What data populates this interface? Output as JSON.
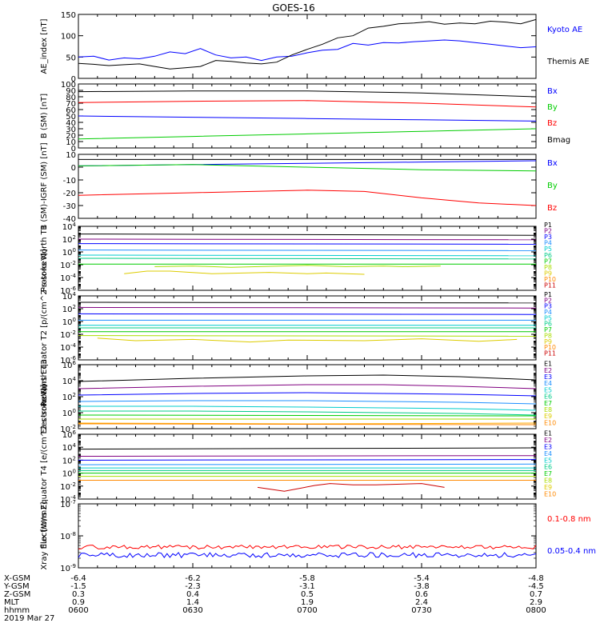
{
  "title": "GOES-16",
  "chart_data": [
    {
      "type": "line",
      "ylabel": "AE_index [nT]",
      "ylim": [
        0,
        150
      ],
      "yticks": [
        0,
        50,
        100,
        150
      ],
      "series": [
        {
          "name": "Kyoto AE",
          "color": "#0000ff",
          "x": [
            0,
            4,
            8,
            12,
            16,
            20,
            24,
            28,
            32,
            36,
            40,
            44,
            48,
            52,
            56,
            60,
            64,
            68,
            72,
            76,
            80,
            84,
            88,
            92,
            96,
            100,
            104,
            108,
            112,
            116,
            120
          ],
          "y": [
            50,
            52,
            43,
            48,
            46,
            52,
            62,
            58,
            70,
            55,
            48,
            50,
            42,
            50,
            52,
            60,
            66,
            68,
            82,
            78,
            84,
            83,
            86,
            88,
            90,
            88,
            84,
            80,
            76,
            72,
            74
          ]
        },
        {
          "name": "Themis AE",
          "color": "#000000",
          "x": [
            0,
            4,
            8,
            12,
            16,
            20,
            24,
            28,
            32,
            36,
            40,
            44,
            48,
            52,
            56,
            60,
            64,
            68,
            72,
            76,
            80,
            84,
            88,
            92,
            96,
            100,
            104,
            108,
            112,
            116,
            120
          ],
          "y": [
            35,
            33,
            30,
            32,
            34,
            28,
            22,
            25,
            28,
            42,
            40,
            36,
            34,
            38,
            55,
            68,
            80,
            95,
            100,
            118,
            122,
            128,
            130,
            133,
            127,
            130,
            128,
            134,
            132,
            128,
            138
          ]
        }
      ]
    },
    {
      "type": "line",
      "ylabel": "B (SM) [nT]",
      "ylim": [
        0,
        100
      ],
      "yticks": [
        0,
        10,
        20,
        30,
        40,
        50,
        60,
        70,
        80,
        90,
        100
      ],
      "series": [
        {
          "name": "Bx",
          "color": "#0000ff",
          "x": [
            0,
            30,
            60,
            90,
            120
          ],
          "y": [
            50,
            48,
            46,
            44,
            42
          ]
        },
        {
          "name": "By",
          "color": "#00cc00",
          "x": [
            0,
            30,
            60,
            90,
            120
          ],
          "y": [
            14,
            18,
            22,
            26,
            30
          ]
        },
        {
          "name": "Bz",
          "color": "#ff0000",
          "x": [
            0,
            30,
            60,
            90,
            120
          ],
          "y": [
            71,
            73,
            74,
            70,
            64
          ]
        },
        {
          "name": "Bmag",
          "color": "#000000",
          "x": [
            0,
            30,
            60,
            90,
            120
          ],
          "y": [
            88,
            89,
            89,
            86,
            80
          ]
        }
      ]
    },
    {
      "type": "line",
      "ylabel": "B (SM)-IGRF (SM) [nT]",
      "ylim": [
        -40,
        10
      ],
      "yticks": [
        -40,
        -30,
        -20,
        -10,
        0,
        10
      ],
      "series": [
        {
          "name": "Bx",
          "color": "#0000ff",
          "x": [
            0,
            30,
            60,
            90,
            120
          ],
          "y": [
            1,
            2,
            3,
            4,
            5
          ]
        },
        {
          "name": "By",
          "color": "#00cc00",
          "x": [
            0,
            30,
            60,
            90,
            120
          ],
          "y": [
            1,
            2,
            0,
            -2,
            -3
          ]
        },
        {
          "name": "Bz",
          "color": "#ff0000",
          "x": [
            0,
            30,
            60,
            75,
            90,
            105,
            120
          ],
          "y": [
            -22,
            -20,
            -18,
            -19,
            -24,
            -28,
            -30
          ]
        },
        {
          "name": "Bmag",
          "color": "#000000",
          "x": [
            0,
            30,
            60,
            90,
            120
          ],
          "y": [
            6,
            6,
            6,
            6,
            6
          ]
        }
      ]
    },
    {
      "type": "line",
      "ylabel": "Protons North T1",
      "log": true,
      "ylim": [
        -6,
        4
      ],
      "yticks": [
        "10^-6",
        "10^-4",
        "10^-2",
        "10^0",
        "10^2",
        "10^4"
      ],
      "series": [
        {
          "name": "P1",
          "color": "#000000",
          "x": [
            0,
            120
          ],
          "y": [
            2.8,
            2.6
          ]
        },
        {
          "name": "P2",
          "color": "#800080",
          "x": [
            0,
            120
          ],
          "y": [
            2.0,
            1.9
          ]
        },
        {
          "name": "P3",
          "color": "#0000ff",
          "x": [
            0,
            120
          ],
          "y": [
            1.3,
            1.2
          ]
        },
        {
          "name": "P4",
          "color": "#1e90ff",
          "x": [
            0,
            120
          ],
          "y": [
            0.3,
            0.2
          ]
        },
        {
          "name": "P5",
          "color": "#00cccc",
          "x": [
            0,
            120
          ],
          "y": [
            -0.5,
            -0.6
          ]
        },
        {
          "name": "P6",
          "color": "#00cc88",
          "x": [
            0,
            120
          ],
          "y": [
            -1.0,
            -1.1
          ]
        },
        {
          "name": "P7",
          "color": "#00cc00",
          "x": [
            0,
            120
          ],
          "y": [
            -1.9,
            -1.9
          ]
        },
        {
          "name": "P8",
          "color": "#aadd00",
          "x": [
            20,
            30,
            40,
            60,
            70,
            80,
            85,
            95
          ],
          "y": [
            -2.3,
            -2.2,
            -2.4,
            -2.1,
            -2.3,
            -2.2,
            -2.3,
            -2.2
          ]
        },
        {
          "name": "P9",
          "color": "#ddcc00",
          "x": [
            12,
            18,
            24,
            35,
            50,
            60,
            65,
            75
          ],
          "y": [
            -3.4,
            -3.0,
            -3.0,
            -3.4,
            -3.2,
            -3.4,
            -3.3,
            -3.5
          ]
        }
      ]
    },
    {
      "type": "line",
      "ylabel": "Protons Equator T2 [p/(cm^2-s-sr-keV)]",
      "log": true,
      "ylim": [
        -6,
        4
      ],
      "yticks": [
        "10^-6",
        "10^-4",
        "10^-2",
        "10^0",
        "10^2",
        "10^4"
      ],
      "series": [
        {
          "name": "P1",
          "color": "#000000",
          "x": [
            0,
            120
          ],
          "y": [
            3.0,
            2.9
          ]
        },
        {
          "name": "P2",
          "color": "#800080",
          "x": [
            0,
            120
          ],
          "y": [
            2.2,
            2.1
          ]
        },
        {
          "name": "P3",
          "color": "#0000ff",
          "x": [
            0,
            120
          ],
          "y": [
            1.2,
            1.1
          ]
        },
        {
          "name": "P4",
          "color": "#1e90ff",
          "x": [
            0,
            120
          ],
          "y": [
            0.2,
            0.2
          ]
        },
        {
          "name": "P5",
          "color": "#00cccc",
          "x": [
            0,
            120
          ],
          "y": [
            -0.6,
            -0.6
          ]
        },
        {
          "name": "P6",
          "color": "#00cc88",
          "x": [
            0,
            120
          ],
          "y": [
            -1.0,
            -1.0
          ]
        },
        {
          "name": "P7",
          "color": "#00cc00",
          "x": [
            0,
            120
          ],
          "y": [
            -1.6,
            -1.6
          ]
        },
        {
          "name": "P8",
          "color": "#aadd00",
          "x": [
            0,
            120
          ],
          "y": [
            -2.2,
            -2.3
          ]
        },
        {
          "name": "P9",
          "color": "#ddcc00",
          "x": [
            5,
            15,
            30,
            45,
            55,
            75,
            90,
            105,
            115
          ],
          "y": [
            -2.6,
            -3.0,
            -2.8,
            -3.2,
            -2.9,
            -3.0,
            -2.7,
            -3.1,
            -2.8
          ]
        }
      ]
    },
    {
      "type": "line",
      "ylabel": "Electrons North T3",
      "log": true,
      "ylim": [
        -2,
        6
      ],
      "yticks": [
        "10^-2",
        "10^0",
        "10^2",
        "10^4",
        "10^6"
      ],
      "series": [
        {
          "name": "E1",
          "color": "#000000",
          "x": [
            0,
            30,
            60,
            80,
            100,
            120
          ],
          "y": [
            3.9,
            4.3,
            4.6,
            4.7,
            4.5,
            4.1
          ]
        },
        {
          "name": "E2",
          "color": "#800080",
          "x": [
            0,
            30,
            60,
            80,
            100,
            120
          ],
          "y": [
            3.0,
            3.3,
            3.5,
            3.5,
            3.3,
            3.0
          ]
        },
        {
          "name": "E3",
          "color": "#0000ff",
          "x": [
            0,
            30,
            60,
            80,
            100,
            120
          ],
          "y": [
            2.2,
            2.4,
            2.5,
            2.4,
            2.3,
            2.1
          ]
        },
        {
          "name": "E4",
          "color": "#1e90ff",
          "x": [
            0,
            30,
            60,
            80,
            100,
            120
          ],
          "y": [
            1.4,
            1.5,
            1.5,
            1.4,
            1.3,
            1.1
          ]
        },
        {
          "name": "E5",
          "color": "#00cccc",
          "x": [
            0,
            30,
            60,
            80,
            100,
            120
          ],
          "y": [
            0.8,
            0.8,
            0.7,
            0.6,
            0.5,
            0.3
          ]
        },
        {
          "name": "E6",
          "color": "#00cc88",
          "x": [
            0,
            30,
            60,
            80,
            100,
            120
          ],
          "y": [
            0.2,
            0.2,
            0.1,
            0.0,
            -0.1,
            -0.3
          ]
        },
        {
          "name": "E7",
          "color": "#00cc00",
          "x": [
            0,
            120
          ],
          "y": [
            -0.3,
            -0.4
          ]
        },
        {
          "name": "E8",
          "color": "#aadd00",
          "x": [
            0,
            120
          ],
          "y": [
            -0.8,
            -0.8
          ]
        },
        {
          "name": "E9",
          "color": "#ffaa00",
          "x": [
            0,
            60,
            120
          ],
          "y": [
            -1.3,
            -1.4,
            -1.3
          ]
        },
        {
          "name": "E10",
          "color": "#ff8800",
          "x": [
            0,
            120
          ],
          "y": [
            -1.4,
            -1.5
          ]
        }
      ]
    },
    {
      "type": "line",
      "ylabel": "Electrons Equator T4 [e/(cm^2-s-sr-keV)]",
      "log": true,
      "ylim": [
        -4,
        6
      ],
      "yticks": [
        "10^-4",
        "10^-2",
        "10^0",
        "10^2",
        "10^4",
        "10^6"
      ],
      "series": [
        {
          "name": "E1",
          "color": "#000000",
          "x": [
            0,
            120
          ],
          "y": [
            3.7,
            3.9
          ]
        },
        {
          "name": "E2",
          "color": "#800080",
          "x": [
            0,
            120
          ],
          "y": [
            2.6,
            2.7
          ]
        },
        {
          "name": "E3",
          "color": "#0000ff",
          "x": [
            0,
            120
          ],
          "y": [
            2.0,
            2.1
          ]
        },
        {
          "name": "E4",
          "color": "#1e90ff",
          "x": [
            0,
            120
          ],
          "y": [
            1.3,
            1.4
          ]
        },
        {
          "name": "E5",
          "color": "#00cccc",
          "x": [
            0,
            120
          ],
          "y": [
            0.8,
            0.8
          ]
        },
        {
          "name": "E6",
          "color": "#00cc88",
          "x": [
            0,
            120
          ],
          "y": [
            0.4,
            0.4
          ]
        },
        {
          "name": "E7",
          "color": "#00cc00",
          "x": [
            0,
            120
          ],
          "y": [
            0.0,
            0.0
          ]
        },
        {
          "name": "E8",
          "color": "#aadd00",
          "x": [
            0,
            120
          ],
          "y": [
            -0.5,
            -0.5
          ]
        },
        {
          "name": "E9",
          "color": "#ff8800",
          "x": [
            0,
            120
          ],
          "y": [
            -1.1,
            -1.1
          ]
        },
        {
          "name": "E10",
          "color": "#cc0000",
          "x": [
            47,
            54,
            62,
            66,
            72,
            78,
            90,
            96
          ],
          "y": [
            -2.2,
            -2.8,
            -1.9,
            -1.6,
            -1.8,
            -1.8,
            -1.6,
            -2.2
          ]
        }
      ]
    },
    {
      "type": "line",
      "ylabel": "Xray flux [W/m2]",
      "log": true,
      "ylim": [
        -9,
        -7
      ],
      "yticks": [
        "10^-9",
        "10^-8",
        "10^-7"
      ],
      "series": [
        {
          "name": "0.1-0.8 nm",
          "color": "#ff0000",
          "noise": true,
          "base": -8.35,
          "amp": 0.06
        },
        {
          "name": "0.05-0.4 nm",
          "color": "#0000ff",
          "noise": true,
          "base": -8.6,
          "amp": 0.08
        }
      ]
    }
  ],
  "panel_labels": {
    "p0": [
      {
        "text": "Kyoto AE",
        "color": "#0000ff"
      },
      {
        "text": "Themis AE",
        "color": "#000000"
      }
    ],
    "p1": [
      {
        "text": "Bx",
        "color": "#0000ff"
      },
      {
        "text": "By",
        "color": "#00cc00"
      },
      {
        "text": "Bz",
        "color": "#ff0000"
      },
      {
        "text": "Bmag",
        "color": "#000000"
      }
    ],
    "p2": [
      {
        "text": "Bx",
        "color": "#0000ff"
      },
      {
        "text": "By",
        "color": "#00cc00"
      },
      {
        "text": "Bz",
        "color": "#ff0000"
      }
    ],
    "p3": [
      "P1",
      "P2",
      "P3",
      "P4",
      "P5",
      "P6",
      "P7",
      "P8",
      "P9",
      "P10",
      "P11"
    ],
    "p4": [
      "P1",
      "P2",
      "P3",
      "P4",
      "P5",
      "P6",
      "P7",
      "P8",
      "P9",
      "P10",
      "P11"
    ],
    "p5": [
      "E1",
      "E2",
      "E3",
      "E4",
      "E5",
      "E6",
      "E7",
      "E8",
      "E9",
      "E10"
    ],
    "p6": [
      "E1",
      "E2",
      "E3",
      "E4",
      "E5",
      "E6",
      "E7",
      "E8",
      "E9",
      "E10"
    ],
    "p7": [
      {
        "text": "0.1-0.8 nm",
        "color": "#ff0000"
      },
      {
        "text": "0.05-0.4 nm",
        "color": "#0000ff"
      }
    ]
  },
  "channel_colors": [
    "#000000",
    "#800080",
    "#0000ff",
    "#1e90ff",
    "#00cccc",
    "#00cc88",
    "#00cc00",
    "#aadd00",
    "#ddcc00",
    "#ff8800",
    "#cc0000"
  ],
  "x_axis": {
    "row_labels": [
      "X-GSM",
      "Y-GSM",
      "Z-GSM",
      "MLT",
      "hhmm",
      "2019 Mar 27"
    ],
    "rows": [
      [
        "-6.4",
        "-6.2",
        "-5.8",
        "-5.4",
        "-4.8"
      ],
      [
        "-1.5",
        "-2.3",
        "-3.1",
        "-3.8",
        "-4.5"
      ],
      [
        "0.3",
        "0.4",
        "0.5",
        "0.6",
        "0.7"
      ],
      [
        "0.9",
        "1.4",
        "1.9",
        "2.4",
        "2.9"
      ],
      [
        "0600",
        "0630",
        "0700",
        "0730",
        "0800"
      ]
    ]
  }
}
